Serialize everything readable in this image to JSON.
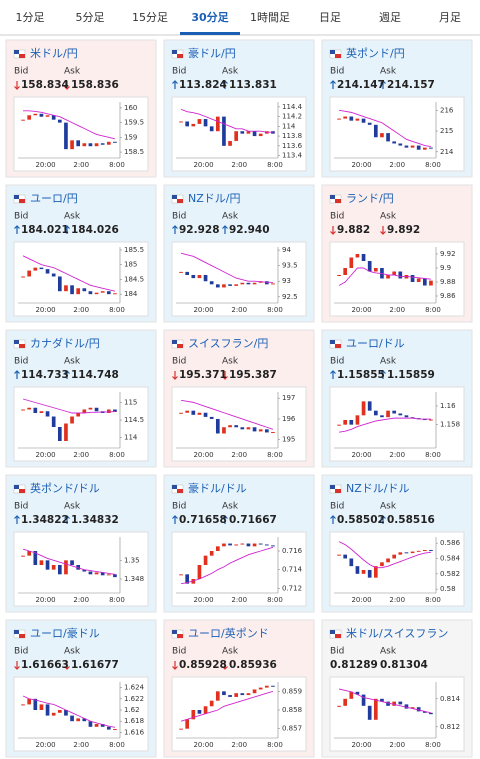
{
  "tabs": [
    "1分足",
    "5分足",
    "15分足",
    "30分足",
    "1時間足",
    "日足",
    "週足",
    "月足"
  ],
  "active_tab": 3,
  "labels": {
    "bid": "Bid",
    "ask": "Ask"
  },
  "time_labels": [
    "20:00",
    "2:00",
    "8:00"
  ],
  "quotes": [
    {
      "pair": "米ドル/円",
      "tone": "down",
      "change": "down",
      "bid": "158.834",
      "ask": "158.836",
      "ylim": [
        158.3,
        160.2
      ],
      "yticks": [
        158.5,
        159,
        159.5,
        160
      ],
      "closes": [
        159.6,
        159.75,
        159.8,
        159.7,
        159.75,
        159.6,
        159.5,
        158.6,
        158.9,
        158.7,
        158.8,
        158.7,
        158.8,
        158.75,
        158.85,
        158.83
      ],
      "ma": [
        159.9,
        159.9,
        159.88,
        159.85,
        159.8,
        159.75,
        159.7,
        159.6,
        159.5,
        159.4,
        159.3,
        159.2,
        159.1,
        159.05,
        159.0,
        158.95
      ]
    },
    {
      "pair": "豪ドル/円",
      "tone": "up",
      "change": "up",
      "bid": "113.824",
      "ask": "113.831",
      "ylim": [
        113.35,
        114.5
      ],
      "yticks": [
        113.4,
        113.6,
        113.8,
        114,
        114.2,
        114.4
      ],
      "closes": [
        114.1,
        114.0,
        114.05,
        114.15,
        114.0,
        113.9,
        114.2,
        113.6,
        113.7,
        113.9,
        113.85,
        113.9,
        113.8,
        113.85,
        113.9,
        113.85
      ],
      "ma": [
        114.35,
        114.3,
        114.28,
        114.25,
        114.2,
        114.15,
        114.1,
        114.05,
        114.0,
        113.95,
        113.95,
        113.9,
        113.9,
        113.9,
        113.88,
        113.88
      ]
    },
    {
      "pair": "英ポンド/円",
      "tone": "up",
      "change": "up",
      "bid": "214.147",
      "ask": "214.157",
      "ylim": [
        213.7,
        216.4
      ],
      "yticks": [
        214,
        215,
        216
      ],
      "closes": [
        215.6,
        215.7,
        215.5,
        215.6,
        215.4,
        215.3,
        214.7,
        214.9,
        214.5,
        214.4,
        214.3,
        214.2,
        214.3,
        214.1,
        214.2,
        214.15
      ],
      "ma": [
        216.0,
        215.95,
        215.9,
        215.8,
        215.7,
        215.6,
        215.5,
        215.4,
        215.2,
        215.0,
        214.8,
        214.6,
        214.5,
        214.4,
        214.3,
        214.25
      ]
    },
    {
      "pair": "ユーロ/円",
      "tone": "up",
      "change": "up",
      "bid": "184.021",
      "ask": "184.026",
      "ylim": [
        183.7,
        185.6
      ],
      "yticks": [
        184,
        184.5,
        185,
        185.5
      ],
      "closes": [
        184.6,
        184.8,
        184.9,
        184.85,
        184.7,
        184.6,
        184.1,
        184.3,
        184.0,
        184.2,
        184.1,
        184.0,
        184.05,
        184.1,
        184.0,
        184.03
      ],
      "ma": [
        185.3,
        185.2,
        185.1,
        185.0,
        184.95,
        184.9,
        184.8,
        184.7,
        184.6,
        184.5,
        184.4,
        184.3,
        184.25,
        184.2,
        184.15,
        184.1
      ]
    },
    {
      "pair": "NZドル/円",
      "tone": "up",
      "change": "up",
      "bid": "92.928",
      "ask": "92.940",
      "ylim": [
        92.3,
        94.1
      ],
      "yticks": [
        92.5,
        93,
        93.5,
        94
      ],
      "closes": [
        93.3,
        93.2,
        93.1,
        93.2,
        93.0,
        92.9,
        92.8,
        92.9,
        92.85,
        92.9,
        92.95,
        92.9,
        92.95,
        93.0,
        92.9,
        92.93
      ],
      "ma": [
        93.9,
        93.85,
        93.8,
        93.7,
        93.6,
        93.5,
        93.4,
        93.3,
        93.2,
        93.1,
        93.05,
        93.0,
        93.0,
        92.98,
        92.97,
        92.96
      ]
    },
    {
      "pair": "ランド/円",
      "tone": "down",
      "change": "down",
      "bid": "9.882",
      "ask": "9.892",
      "ylim": [
        9.85,
        9.93
      ],
      "yticks": [
        9.86,
        9.88,
        9.9,
        9.92
      ],
      "closes": [
        9.89,
        9.9,
        9.915,
        9.92,
        9.91,
        9.895,
        9.9,
        9.885,
        9.89,
        9.895,
        9.885,
        9.89,
        9.88,
        9.885,
        9.875,
        9.882
      ],
      "ma": [
        9.875,
        9.88,
        9.89,
        9.9,
        9.9,
        9.895,
        9.893,
        9.892,
        9.89,
        9.89,
        9.888,
        9.888,
        9.887,
        9.886,
        9.885,
        9.884
      ]
    },
    {
      "pair": "カナダドル/円",
      "tone": "up",
      "change": "up",
      "bid": "114.733",
      "ask": "114.748",
      "ylim": [
        113.7,
        115.3
      ],
      "yticks": [
        114,
        114.5,
        115
      ],
      "closes": [
        114.8,
        114.85,
        114.7,
        114.75,
        114.6,
        114.3,
        113.9,
        114.4,
        114.6,
        114.7,
        114.8,
        114.85,
        114.75,
        114.7,
        114.8,
        114.73
      ],
      "ma": [
        115.1,
        115.05,
        115.0,
        114.95,
        114.9,
        114.85,
        114.8,
        114.75,
        114.7,
        114.7,
        114.7,
        114.72,
        114.72,
        114.73,
        114.73,
        114.74
      ]
    },
    {
      "pair": "スイスフラン/円",
      "tone": "down",
      "change": "down",
      "bid": "195.371",
      "ask": "195.387",
      "ylim": [
        194.6,
        197.3
      ],
      "yticks": [
        195,
        196,
        197
      ],
      "closes": [
        196.3,
        196.4,
        196.2,
        196.3,
        196.1,
        196.0,
        195.3,
        195.6,
        195.7,
        195.6,
        195.5,
        195.6,
        195.4,
        195.5,
        195.35,
        195.37
      ],
      "ma": [
        196.9,
        196.85,
        196.8,
        196.7,
        196.6,
        196.5,
        196.4,
        196.3,
        196.2,
        196.1,
        196.0,
        195.9,
        195.8,
        195.7,
        195.6,
        195.5
      ]
    },
    {
      "pair": "ユーロ/ドル",
      "tone": "up",
      "change": "up",
      "bid": "1.15855",
      "ask": "1.15859",
      "ylim": [
        1.1555,
        1.1615
      ],
      "yticks": [
        1.158,
        1.16
      ],
      "closes": [
        1.158,
        1.1585,
        1.158,
        1.159,
        1.1605,
        1.1595,
        1.159,
        1.1588,
        1.1595,
        1.1592,
        1.159,
        1.1588,
        1.1587,
        1.1586,
        1.1585,
        1.15855
      ],
      "ma": [
        1.1572,
        1.1573,
        1.1575,
        1.1578,
        1.158,
        1.1582,
        1.1584,
        1.1585,
        1.1586,
        1.1587,
        1.1587,
        1.1587,
        1.1587,
        1.1586,
        1.1586,
        1.1586
      ]
    },
    {
      "pair": "英ポンド/ドル",
      "tone": "up",
      "change": "up",
      "bid": "1.34822",
      "ask": "1.34832",
      "ylim": [
        1.3465,
        1.3525
      ],
      "yticks": [
        1.348,
        1.35
      ],
      "closes": [
        1.3505,
        1.351,
        1.3495,
        1.35,
        1.349,
        1.3495,
        1.3485,
        1.35,
        1.3495,
        1.349,
        1.3488,
        1.3485,
        1.3487,
        1.3484,
        1.3485,
        1.3482
      ],
      "ma": [
        1.3512,
        1.351,
        1.3508,
        1.3505,
        1.3502,
        1.35,
        1.3498,
        1.3496,
        1.3494,
        1.3492,
        1.349,
        1.3489,
        1.3488,
        1.3487,
        1.3486,
        1.3485
      ]
    },
    {
      "pair": "豪ドル/ドル",
      "tone": "up",
      "change": "up",
      "bid": "0.71658",
      "ask": "0.71667",
      "ylim": [
        0.7115,
        0.7175
      ],
      "yticks": [
        0.712,
        0.714,
        0.716
      ],
      "closes": [
        0.7135,
        0.7125,
        0.713,
        0.7145,
        0.7155,
        0.716,
        0.7165,
        0.7168,
        0.7166,
        0.7167,
        0.7168,
        0.7165,
        0.7168,
        0.7167,
        0.7166,
        0.71658
      ],
      "ma": [
        0.7125,
        0.7126,
        0.7128,
        0.713,
        0.7133,
        0.7136,
        0.714,
        0.7143,
        0.7147,
        0.715,
        0.7153,
        0.7156,
        0.7158,
        0.716,
        0.7162,
        0.7164
      ]
    },
    {
      "pair": "NZドル/ドル",
      "tone": "up",
      "change": "up",
      "bid": "0.58502",
      "ask": "0.58516",
      "ylim": [
        0.5795,
        0.5868
      ],
      "yticks": [
        0.58,
        0.582,
        0.584,
        0.586
      ],
      "closes": [
        0.5845,
        0.584,
        0.583,
        0.582,
        0.5825,
        0.5815,
        0.583,
        0.5835,
        0.584,
        0.5845,
        0.5848,
        0.5847,
        0.5849,
        0.585,
        0.5851,
        0.58502
      ],
      "ma": [
        0.5862,
        0.5858,
        0.5852,
        0.5845,
        0.5838,
        0.5832,
        0.5828,
        0.5828,
        0.583,
        0.5833,
        0.5836,
        0.5839,
        0.5842,
        0.5845,
        0.5847,
        0.5848
      ]
    },
    {
      "pair": "ユーロ/豪ドル",
      "tone": "up",
      "change": "down",
      "bid": "1.61663",
      "ask": "1.61677",
      "ylim": [
        1.615,
        1.625
      ],
      "yticks": [
        1.616,
        1.618,
        1.62,
        1.622,
        1.624
      ],
      "closes": [
        1.621,
        1.622,
        1.62,
        1.621,
        1.619,
        1.6195,
        1.62,
        1.619,
        1.618,
        1.6185,
        1.618,
        1.617,
        1.6175,
        1.617,
        1.6165,
        1.6166
      ],
      "ma": [
        1.6225,
        1.622,
        1.6218,
        1.6215,
        1.6212,
        1.621,
        1.6205,
        1.62,
        1.6195,
        1.619,
        1.6185,
        1.618,
        1.6177,
        1.6174,
        1.6171,
        1.6169
      ]
    },
    {
      "pair": "ユーロ/英ポンド",
      "tone": "down",
      "change": "down",
      "bid": "0.85928",
      "ask": "0.85936",
      "ylim": [
        0.8565,
        0.8595
      ],
      "yticks": [
        0.857,
        0.858,
        0.859
      ],
      "closes": [
        0.857,
        0.8575,
        0.858,
        0.8578,
        0.8582,
        0.8585,
        0.859,
        0.8588,
        0.8587,
        0.8589,
        0.8588,
        0.8589,
        0.8591,
        0.8592,
        0.8593,
        0.85928
      ],
      "ma": [
        0.8574,
        0.8575,
        0.8576,
        0.8577,
        0.8578,
        0.8579,
        0.858,
        0.8582,
        0.8583,
        0.8584,
        0.8585,
        0.8586,
        0.8587,
        0.8588,
        0.8589,
        0.859
      ]
    },
    {
      "pair": "米ドル/スイスフラン",
      "tone": "flat",
      "change": null,
      "bid": "0.81289",
      "ask": "0.81304",
      "ylim": [
        0.8112,
        0.8152
      ],
      "yticks": [
        0.812,
        0.814
      ],
      "closes": [
        0.8135,
        0.814,
        0.8145,
        0.8143,
        0.8135,
        0.8125,
        0.814,
        0.8138,
        0.8135,
        0.8138,
        0.8136,
        0.8133,
        0.8134,
        0.8131,
        0.813,
        0.8129
      ],
      "ma": [
        0.8147,
        0.8146,
        0.8145,
        0.8143,
        0.8141,
        0.814,
        0.8139,
        0.8138,
        0.8137,
        0.8136,
        0.8135,
        0.8134,
        0.8133,
        0.8132,
        0.8131,
        0.813
      ]
    }
  ]
}
